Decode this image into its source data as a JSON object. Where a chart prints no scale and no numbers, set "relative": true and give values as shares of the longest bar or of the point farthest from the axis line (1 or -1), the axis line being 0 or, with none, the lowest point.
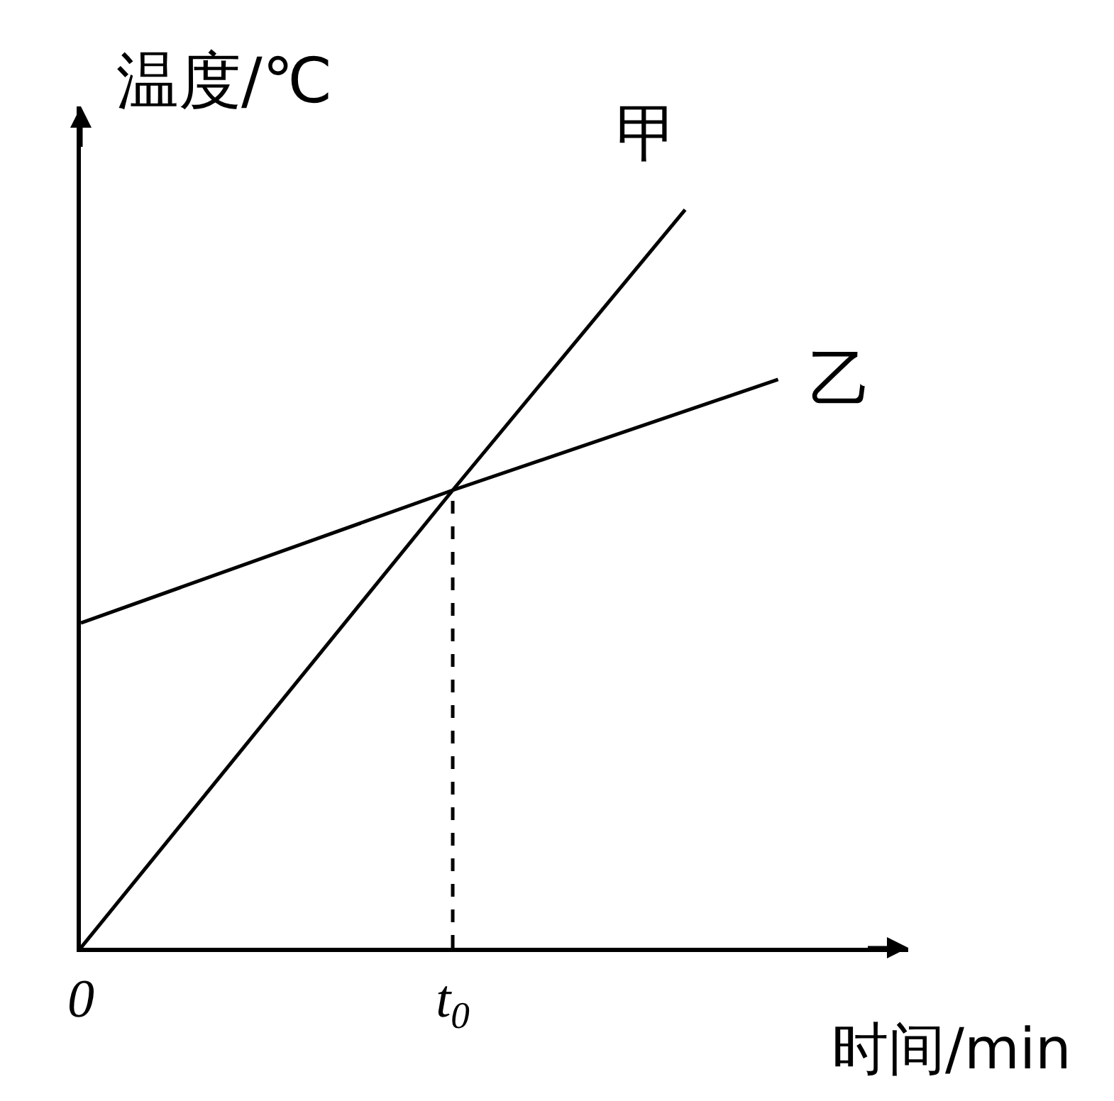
{
  "chart_data": {
    "type": "line",
    "relative": true,
    "xlabel": "时间/min",
    "ylabel": "温度/℃",
    "categories": [
      "0",
      null,
      null,
      null,
      null,
      null,
      null,
      null,
      "t$_{0}$",
      null,
      null,
      null,
      null,
      null,
      null,
      null,
      null,
      null
    ],
    "series": [
      {
        "name": "甲",
        "color": "#000000",
        "values": [
          0,
          null,
          null,
          null,
          null,
          null,
          null,
          null,
          0.62,
          null,
          null,
          null,
          null,
          1,
          null,
          null,
          null,
          null
        ]
      },
      {
        "name": "乙",
        "color": "#000000",
        "values": [
          0.44,
          null,
          null,
          null,
          null,
          null,
          null,
          null,
          0.62,
          null,
          null,
          null,
          null,
          null,
          null,
          0.77,
          null,
          null
        ]
      },
      {
        "color": "#000000",
        "x": [
          "t$_{0}$",
          "t$_{0}$"
        ],
        "values": [
          0,
          0.62
        ],
        "line_style": "dashed"
      }
    ],
    "grid": false,
    "legend": false,
    "marker": "none",
    "line_style": "solid"
  }
}
